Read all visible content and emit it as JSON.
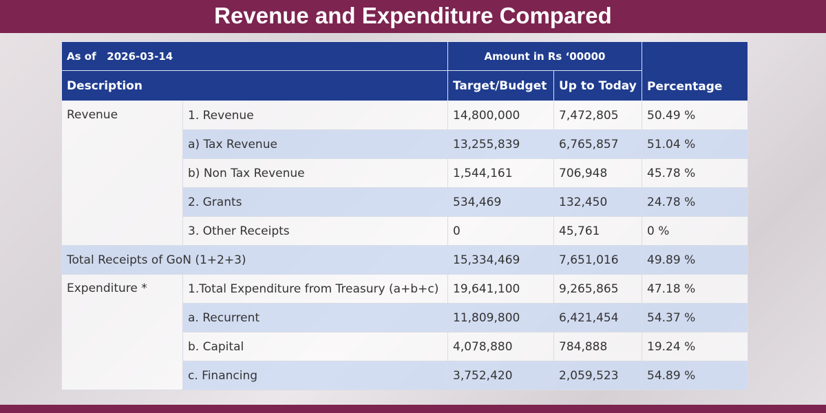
{
  "header": {
    "title": "Revenue and Expenditure Compared"
  },
  "table": {
    "as_of": "As of",
    "date": "2026-03-14",
    "amount_header": "Amount in Rs ‘00000",
    "columns": [
      "Description",
      "Target/Budget",
      "Up to Today",
      "Percentage"
    ],
    "rows": [
      {
        "group": "Revenue",
        "item": "1. Revenue",
        "target": "14,800,000",
        "today": "7,472,805",
        "pct": "50.49 %"
      },
      {
        "item": "a) Tax Revenue",
        "target": "13,255,839",
        "today": "6,765,857",
        "pct": "51.04 %"
      },
      {
        "item": "b) Non Tax Revenue",
        "target": "1,544,161",
        "today": "706,948",
        "pct": "45.78 %"
      },
      {
        "item": "2. Grants",
        "target": "534,469",
        "today": "132,450",
        "pct": "24.78 %"
      },
      {
        "item": "3. Other Receipts",
        "target": "0",
        "today": "45,761",
        "pct": "0 %"
      },
      {
        "label": "Total Receipts of GoN (1+2+3)",
        "target": "15,334,469",
        "today": "7,651,016",
        "pct": "49.89 %"
      },
      {
        "group": "Expenditure *",
        "item": "1.Total Expenditure from Treasury (a+b+c)",
        "target": "19,641,100",
        "today": "9,265,865",
        "pct": "47.18 %"
      },
      {
        "item": "a. Recurrent",
        "target": "11,809,800",
        "today": "6,421,454",
        "pct": "54.37 %"
      },
      {
        "item": "b. Capital",
        "target": "4,078,880",
        "today": "784,888",
        "pct": "19.24 %"
      },
      {
        "item": "c. Financing",
        "target": "3,752,420",
        "today": "2,059,523",
        "pct": "54.89 %"
      }
    ]
  }
}
